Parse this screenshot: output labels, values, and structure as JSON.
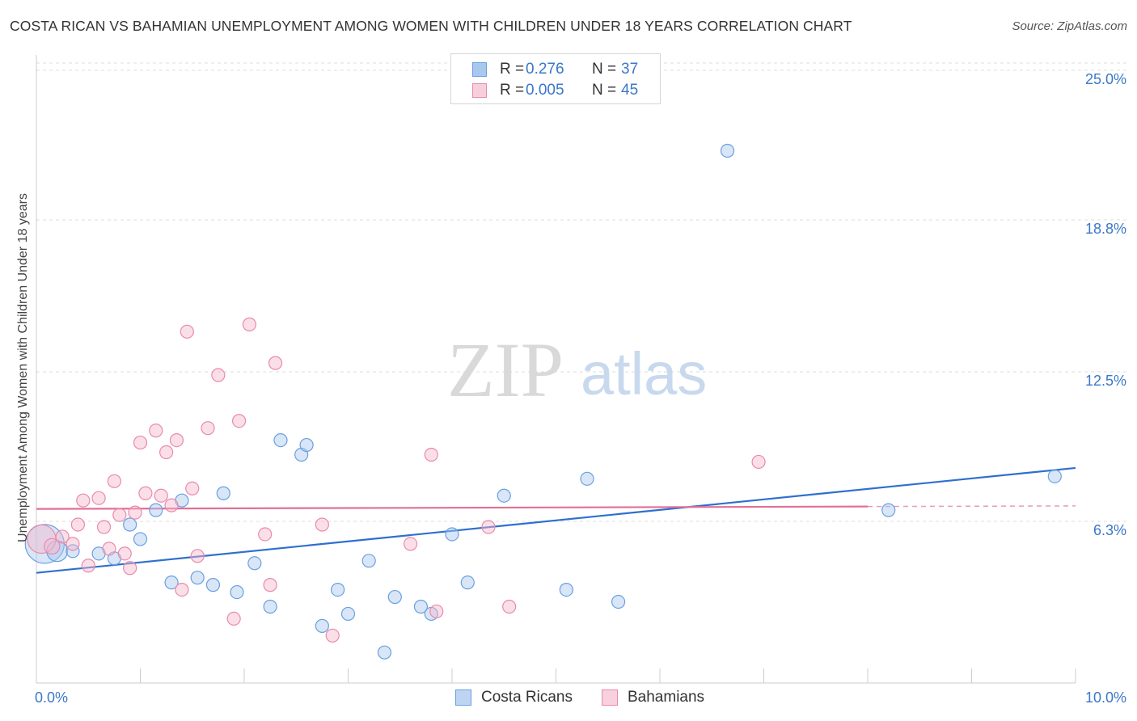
{
  "header": {
    "title": "COSTA RICAN VS BAHAMIAN UNEMPLOYMENT AMONG WOMEN WITH CHILDREN UNDER 18 YEARS CORRELATION CHART",
    "source": "Source: ZipAtlas.com"
  },
  "watermark": {
    "zip": "ZIP",
    "atlas": "atlas"
  },
  "legend": {
    "rows": [
      {
        "r_label": "R =",
        "r_value": "0.276",
        "n_label": "N =",
        "n_value": "37",
        "color": "#a9c8ef"
      },
      {
        "r_label": "R =",
        "r_value": "0.005",
        "n_label": "N =",
        "n_value": "45",
        "color": "#f7b9cc"
      }
    ],
    "bottom": [
      {
        "label": "Costa Ricans",
        "color": "#a9c8ef"
      },
      {
        "label": "Bahamians",
        "color": "#f7b9cc"
      }
    ]
  },
  "chart_data": {
    "type": "scatter",
    "title": "COSTA RICAN VS BAHAMIAN UNEMPLOYMENT AMONG WOMEN WITH CHILDREN UNDER 18 YEARS CORRELATION CHART",
    "xlabel": "",
    "ylabel": "Unemployment Among Women with Children Under 18 years",
    "xlim": [
      0,
      10
    ],
    "ylim": [
      0,
      25.6
    ],
    "x_tick_labels": [
      "0.0%",
      "10.0%"
    ],
    "y_ticks": [
      6.3,
      12.5,
      18.8,
      25.0
    ],
    "y_tick_labels": [
      "6.3%",
      "12.5%",
      "18.8%",
      "25.0%"
    ],
    "grid": "horizontal dashed",
    "legend_placement": "top-center",
    "series": [
      {
        "name": "Costa Ricans",
        "color": "#a9c8ef",
        "stroke": "#6a9fe0",
        "line_color": "#2f6fcf",
        "trend": {
          "x0": 0.0,
          "y0": 4.5,
          "x1": 10.0,
          "y1": 8.85
        },
        "points": [
          [
            0.08,
            5.7,
            3
          ],
          [
            0.2,
            5.4,
            1.6
          ],
          [
            0.35,
            5.4,
            1
          ],
          [
            0.6,
            5.3,
            1
          ],
          [
            0.75,
            5.1,
            1
          ],
          [
            0.9,
            6.5,
            1
          ],
          [
            1.0,
            5.9,
            1
          ],
          [
            1.15,
            7.1,
            1
          ],
          [
            1.3,
            4.1,
            1
          ],
          [
            1.4,
            7.5,
            1
          ],
          [
            1.55,
            4.3,
            1
          ],
          [
            1.7,
            4.0,
            1
          ],
          [
            1.8,
            7.8,
            1
          ],
          [
            1.93,
            3.7,
            1
          ],
          [
            2.1,
            4.9,
            1
          ],
          [
            2.25,
            3.1,
            1
          ],
          [
            2.35,
            10.0,
            1
          ],
          [
            2.55,
            9.4,
            1
          ],
          [
            2.6,
            9.8,
            1
          ],
          [
            2.75,
            2.3,
            1
          ],
          [
            2.9,
            3.8,
            1
          ],
          [
            3.0,
            2.8,
            1
          ],
          [
            3.2,
            5.0,
            1
          ],
          [
            3.35,
            1.2,
            1
          ],
          [
            3.45,
            3.5,
            1
          ],
          [
            3.7,
            3.1,
            1
          ],
          [
            3.8,
            2.8,
            1
          ],
          [
            4.0,
            6.1,
            1
          ],
          [
            4.15,
            4.1,
            1
          ],
          [
            4.5,
            7.7,
            1
          ],
          [
            5.1,
            3.8,
            1
          ],
          [
            5.3,
            8.4,
            1
          ],
          [
            5.6,
            3.3,
            1
          ],
          [
            6.65,
            22.0,
            1
          ],
          [
            8.2,
            7.1,
            1
          ],
          [
            9.8,
            8.5,
            1
          ]
        ]
      },
      {
        "name": "Bahamians",
        "color": "#f7b9cc",
        "stroke": "#e98aaa",
        "line_color": "#e26f96",
        "trend": {
          "x0": 0.0,
          "y0": 7.15,
          "x1": 8.0,
          "y1": 7.25,
          "dash_to": 10.0
        },
        "points": [
          [
            0.05,
            5.9,
            2.2
          ],
          [
            0.15,
            5.6,
            1.2
          ],
          [
            0.25,
            6.0,
            1
          ],
          [
            0.35,
            5.7,
            1
          ],
          [
            0.4,
            6.5,
            1
          ],
          [
            0.45,
            7.5,
            1
          ],
          [
            0.5,
            4.8,
            1
          ],
          [
            0.6,
            7.6,
            1
          ],
          [
            0.65,
            6.4,
            1
          ],
          [
            0.7,
            5.5,
            1
          ],
          [
            0.75,
            8.3,
            1
          ],
          [
            0.8,
            6.9,
            1
          ],
          [
            0.85,
            5.3,
            1
          ],
          [
            0.9,
            4.7,
            1
          ],
          [
            0.95,
            7.0,
            1
          ],
          [
            1.0,
            9.9,
            1
          ],
          [
            1.05,
            7.8,
            1
          ],
          [
            1.15,
            10.4,
            1
          ],
          [
            1.2,
            7.7,
            1
          ],
          [
            1.25,
            9.5,
            1
          ],
          [
            1.3,
            7.3,
            1
          ],
          [
            1.35,
            10.0,
            1
          ],
          [
            1.4,
            3.8,
            1
          ],
          [
            1.45,
            14.5,
            1
          ],
          [
            1.5,
            8.0,
            1
          ],
          [
            1.55,
            5.2,
            1
          ],
          [
            1.65,
            10.5,
            1
          ],
          [
            1.75,
            12.7,
            1
          ],
          [
            1.9,
            2.6,
            1
          ],
          [
            1.95,
            10.8,
            1
          ],
          [
            2.05,
            14.8,
            1
          ],
          [
            2.2,
            6.1,
            1
          ],
          [
            2.25,
            4.0,
            1
          ],
          [
            2.3,
            13.2,
            1
          ],
          [
            2.75,
            6.5,
            1
          ],
          [
            2.85,
            1.9,
            1
          ],
          [
            3.6,
            5.7,
            1
          ],
          [
            3.8,
            9.4,
            1
          ],
          [
            3.85,
            2.9,
            1
          ],
          [
            4.35,
            6.4,
            1
          ],
          [
            4.55,
            3.1,
            1
          ],
          [
            6.95,
            9.1,
            1
          ]
        ]
      }
    ]
  }
}
